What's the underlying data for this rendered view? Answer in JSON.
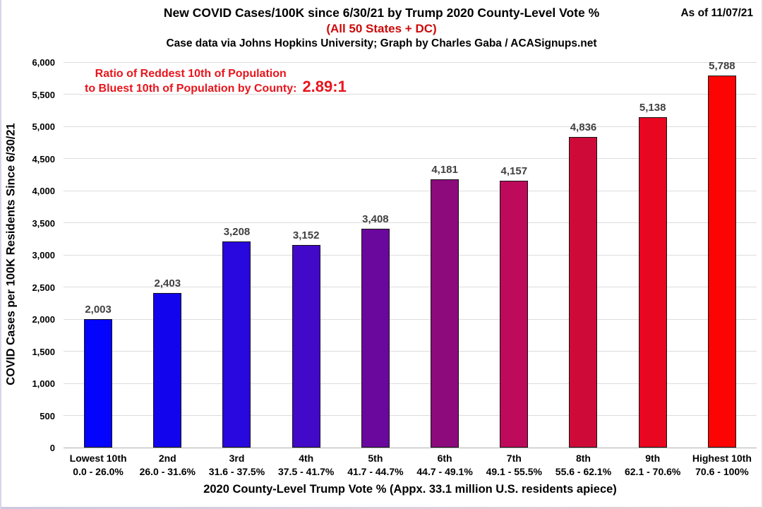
{
  "header": {
    "title": "New COVID Cases/100K since 6/30/21 by Trump 2020 County-Level Vote %",
    "subtitle": "(All 50 States + DC)",
    "credit": "Case data via Johns Hopkins University; Graph by Charles Gaba / ACASignups.net",
    "as_of": "As of 11/07/21"
  },
  "annotation": {
    "line1": "Ratio of Reddest 10th of Population",
    "line2": "to Bluest 10th of Population by County:",
    "ratio": "2.89:1",
    "color": "#e8151c"
  },
  "chart_data": {
    "type": "bar",
    "title": "New COVID Cases/100K since 6/30/21 by Trump 2020 County-Level Vote %",
    "subtitle": "(All 50 States + DC)",
    "categories": [
      "Lowest 10th",
      "2nd",
      "3rd",
      "4th",
      "5th",
      "6th",
      "7th",
      "8th",
      "9th",
      "Highest 10th"
    ],
    "category_ranges": [
      "0.0 - 26.0%",
      "26.0 - 31.6%",
      "31.6 - 37.5%",
      "37.5 - 41.7%",
      "41.7 - 44.7%",
      "44.7 - 49.1%",
      "49.1 - 55.5%",
      "55.6 - 62.1%",
      "62.1 - 70.6%",
      "70.6 - 100%"
    ],
    "values": [
      2003,
      2403,
      3208,
      3152,
      3408,
      4181,
      4157,
      4836,
      5138,
      5788
    ],
    "value_labels": [
      "2,003",
      "2,403",
      "3,208",
      "3,152",
      "3,408",
      "4,181",
      "4,157",
      "4,836",
      "5,138",
      "5,788"
    ],
    "bar_colors": [
      "#0404fc",
      "#1205ee",
      "#2808de",
      "#4209c8",
      "#6a089e",
      "#8c0a7c",
      "#be0a5a",
      "#ce0b38",
      "#e80620",
      "#fc0404"
    ],
    "xlabel": "2020 County-Level Trump Vote % (Appx. 33.1 million U.S. residents apiece)",
    "ylabel": "COVID Cases per 100K Residents Since 6/30/21",
    "ylim": [
      0,
      6000
    ],
    "ytick_step": 500,
    "ytick_labels": [
      "0",
      "500",
      "1,000",
      "1,500",
      "2,000",
      "2,500",
      "3,000",
      "3,500",
      "4,000",
      "4,500",
      "5,000",
      "5,500",
      "6,000"
    ],
    "grid": true,
    "legend": false,
    "value_label_color": "#404040"
  }
}
